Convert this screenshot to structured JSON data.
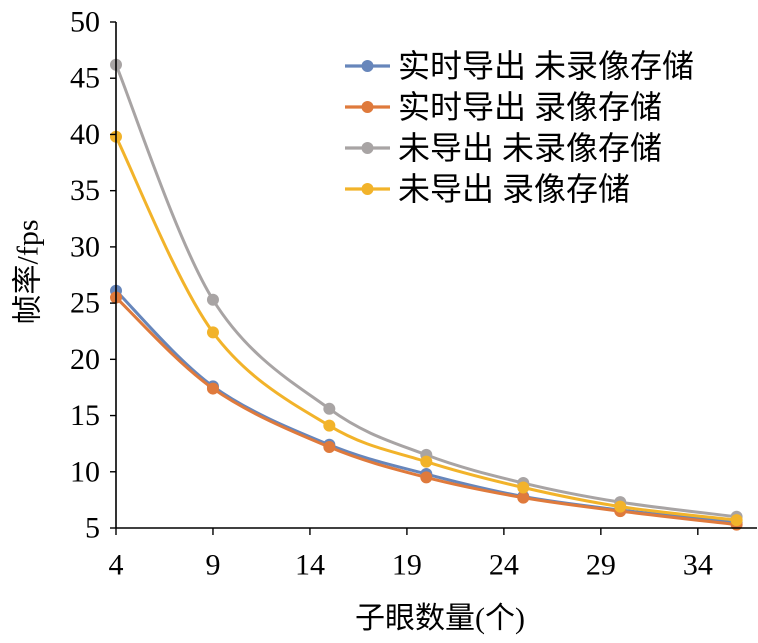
{
  "chart_data": {
    "type": "line",
    "xlabel": "子眼数量(个)",
    "ylabel": "帧率/fps",
    "x": [
      4,
      9,
      15,
      20,
      25,
      30,
      36
    ],
    "xticks": [
      4,
      9,
      14,
      19,
      24,
      29,
      34
    ],
    "yticks": [
      5,
      10,
      15,
      20,
      25,
      30,
      35,
      40,
      45,
      50
    ],
    "xlim": [
      4,
      37
    ],
    "ylim": [
      5,
      50
    ],
    "grid": false,
    "smooth": true,
    "legend": "top-right",
    "series": [
      {
        "name": "实时导出 未录像存储",
        "color": "#6786bb",
        "values": [
          26.1,
          17.6,
          12.4,
          9.8,
          7.8,
          6.6,
          5.5
        ]
      },
      {
        "name": "实时导出 录像存储",
        "color": "#df7a3c",
        "values": [
          25.5,
          17.4,
          12.2,
          9.5,
          7.7,
          6.5,
          5.3
        ]
      },
      {
        "name": "未导出 未录像存储",
        "color": "#a8a4a4",
        "values": [
          46.2,
          25.3,
          15.6,
          11.5,
          9.0,
          7.3,
          6.0
        ]
      },
      {
        "name": "未导出 录像存储",
        "color": "#f2b32a",
        "values": [
          39.8,
          22.4,
          14.1,
          10.9,
          8.6,
          6.9,
          5.7
        ]
      }
    ]
  }
}
